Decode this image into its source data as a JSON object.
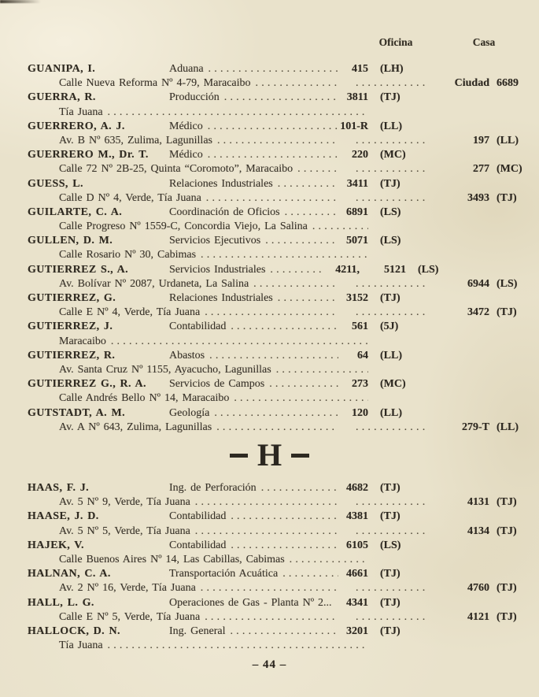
{
  "header": {
    "office_label": "Oficina",
    "casa_label": "Casa"
  },
  "sections": [
    {
      "divider_letter": null,
      "entries": [
        {
          "l1": {
            "name": "GUANIPA, I.",
            "title": "Aduana",
            "office": "415",
            "ocode": "(LH)"
          },
          "l2": {
            "text": "Calle Nueva Reforma Nº 4-79, Maracaibo",
            "odots": true,
            "wide": false,
            "casa": "Ciudad",
            "ccode": "6689"
          }
        },
        {
          "l1": {
            "name": "GUERRA, R.",
            "title": "Producción",
            "office": "3811",
            "ocode": "(TJ)"
          },
          "l2": {
            "text": "Tía Juana",
            "odots": false,
            "wide": true,
            "casa": "",
            "ccode": ""
          }
        },
        {
          "l1": {
            "name": "GUERRERO, A. J.",
            "title": "Médico",
            "office": "101-R",
            "ocode": "(LL)"
          },
          "l2": {
            "text": "Av. B Nº 635, Zulima, Lagunillas",
            "odots": true,
            "wide": false,
            "casa": "197",
            "ccode": "(LL)"
          }
        },
        {
          "l1": {
            "name": "GUERRERO M., Dr. T.",
            "title": "Médico",
            "office": "220",
            "ocode": "(MC)"
          },
          "l2": {
            "text": "Calle 72 Nº 2B-25, Quinta “Coromoto”, Maracaibo",
            "odots": true,
            "wide": false,
            "casa": "277",
            "ccode": "(MC)"
          }
        },
        {
          "l1": {
            "name": "GUESS, L.",
            "title": "Relaciones Industriales",
            "office": "3411",
            "ocode": "(TJ)"
          },
          "l2": {
            "text": "Calle D Nº 4, Verde, Tía Juana",
            "odots": true,
            "wide": false,
            "casa": "3493",
            "ccode": "(TJ)"
          }
        },
        {
          "l1": {
            "name": "GUILARTE, C. A.",
            "title": "Coordinación de Oficios",
            "office": "6891",
            "ocode": "(LS)"
          },
          "l2": {
            "text": "Calle Progreso Nº 1559-C, Concordia Viejo, La Salina",
            "odots": false,
            "wide": true,
            "casa": "",
            "ccode": ""
          }
        },
        {
          "l1": {
            "name": "GULLEN, D. M.",
            "title": "Servicios Ejecutivos",
            "office": "5071",
            "ocode": "(LS)"
          },
          "l2": {
            "text": "Calle Rosario Nº 30, Cabimas",
            "odots": false,
            "wide": true,
            "casa": "",
            "ccode": ""
          }
        },
        {
          "l1": {
            "name": "GUTIERREZ S., A.",
            "title": "Servicios Industriales",
            "extra": "4211,",
            "shift": true,
            "office": "5121",
            "ocode": "(LS)"
          },
          "l2": {
            "text": "Av. Bolívar Nº 2087, Urdaneta, La Salina",
            "odots": true,
            "wide": false,
            "casa": "6944",
            "ccode": "(LS)"
          }
        },
        {
          "l1": {
            "name": "GUTIERREZ, G.",
            "title": "Relaciones Industriales",
            "office": "3152",
            "ocode": "(TJ)"
          },
          "l2": {
            "text": "Calle E Nº 4, Verde, Tía Juana",
            "odots": true,
            "wide": false,
            "casa": "3472",
            "ccode": "(TJ)"
          }
        },
        {
          "l1": {
            "name": "GUTIERREZ, J.",
            "title": "Contabilidad",
            "office": "561",
            "ocode": "(5J)"
          },
          "l2": {
            "text": "Maracaibo",
            "odots": false,
            "wide": true,
            "casa": "",
            "ccode": ""
          }
        },
        {
          "l1": {
            "name": "GUTIERREZ, R.",
            "title": "Abastos",
            "office": "64",
            "ocode": "(LL)"
          },
          "l2": {
            "text": "Av. Santa Cruz Nº 1155, Ayacucho, Lagunillas",
            "odots": false,
            "wide": true,
            "casa": "",
            "ccode": ""
          }
        },
        {
          "l1": {
            "name": "GUTIERREZ G., R. A.",
            "title": "Servicios de Campos",
            "office": "273",
            "ocode": "(MC)"
          },
          "l2": {
            "text": "Calle Andrés Bello Nº 14, Maracaibo",
            "odots": false,
            "wide": true,
            "casa": "",
            "ccode": ""
          }
        },
        {
          "l1": {
            "name": "GUTSTADT, A. M.",
            "title": "Geología",
            "office": "120",
            "ocode": "(LL)"
          },
          "l2": {
            "text": "Av. A Nº 643, Zulima, Lagunillas",
            "odots": true,
            "wide": false,
            "casa": "279-T",
            "ccode": "(LL)"
          }
        }
      ]
    },
    {
      "divider_letter": "H",
      "entries": [
        {
          "l1": {
            "name": "HAAS, F. J.",
            "title": "Ing. de Perforación",
            "office": "4682",
            "ocode": "(TJ)"
          },
          "l2": {
            "text": "Av. 5 Nº 9, Verde, Tía Juana",
            "odots": true,
            "wide": false,
            "casa": "4131",
            "ccode": "(TJ)"
          }
        },
        {
          "l1": {
            "name": "HAASE, J. D.",
            "title": "Contabilidad",
            "office": "4381",
            "ocode": "(TJ)"
          },
          "l2": {
            "text": "Av. 5 Nº 5, Verde, Tía Juana",
            "odots": true,
            "wide": false,
            "casa": "4134",
            "ccode": "(TJ)"
          }
        },
        {
          "l1": {
            "name": "HAJEK, V.",
            "title": "Contabilidad",
            "office": "6105",
            "ocode": "(LS)"
          },
          "l2": {
            "text": "Calle Buenos Aires Nº 14, Las Cabillas, Cabimas",
            "odots": false,
            "wide": true,
            "casa": "",
            "ccode": ""
          }
        },
        {
          "l1": {
            "name": "HALNAN, C. A.",
            "title": "Transportación Acuática",
            "office": "4661",
            "ocode": "(TJ)"
          },
          "l2": {
            "text": "Av. 2 Nº 16, Verde, Tía Juana",
            "odots": true,
            "wide": false,
            "casa": "4760",
            "ccode": "(TJ)"
          }
        },
        {
          "l1": {
            "name": "HALL, L. G.",
            "title": "Operaciones de Gas - Planta Nº 2...",
            "noleader": true,
            "office": "4341",
            "ocode": "(TJ)"
          },
          "l2": {
            "text": "Calle E Nº 5, Verde, Tía Juana",
            "odots": true,
            "wide": false,
            "casa": "4121",
            "ccode": "(TJ)"
          }
        },
        {
          "l1": {
            "name": "HALLOCK, D. N.",
            "title": "Ing. General",
            "office": "3201",
            "ocode": "(TJ)"
          },
          "l2": {
            "text": "Tía Juana",
            "odots": false,
            "wide": true,
            "casa": "",
            "ccode": ""
          }
        }
      ]
    }
  ],
  "footer": {
    "display": "– 44 –"
  },
  "colors": {
    "paper": "#e9e2cb",
    "ink": "#39332a"
  }
}
